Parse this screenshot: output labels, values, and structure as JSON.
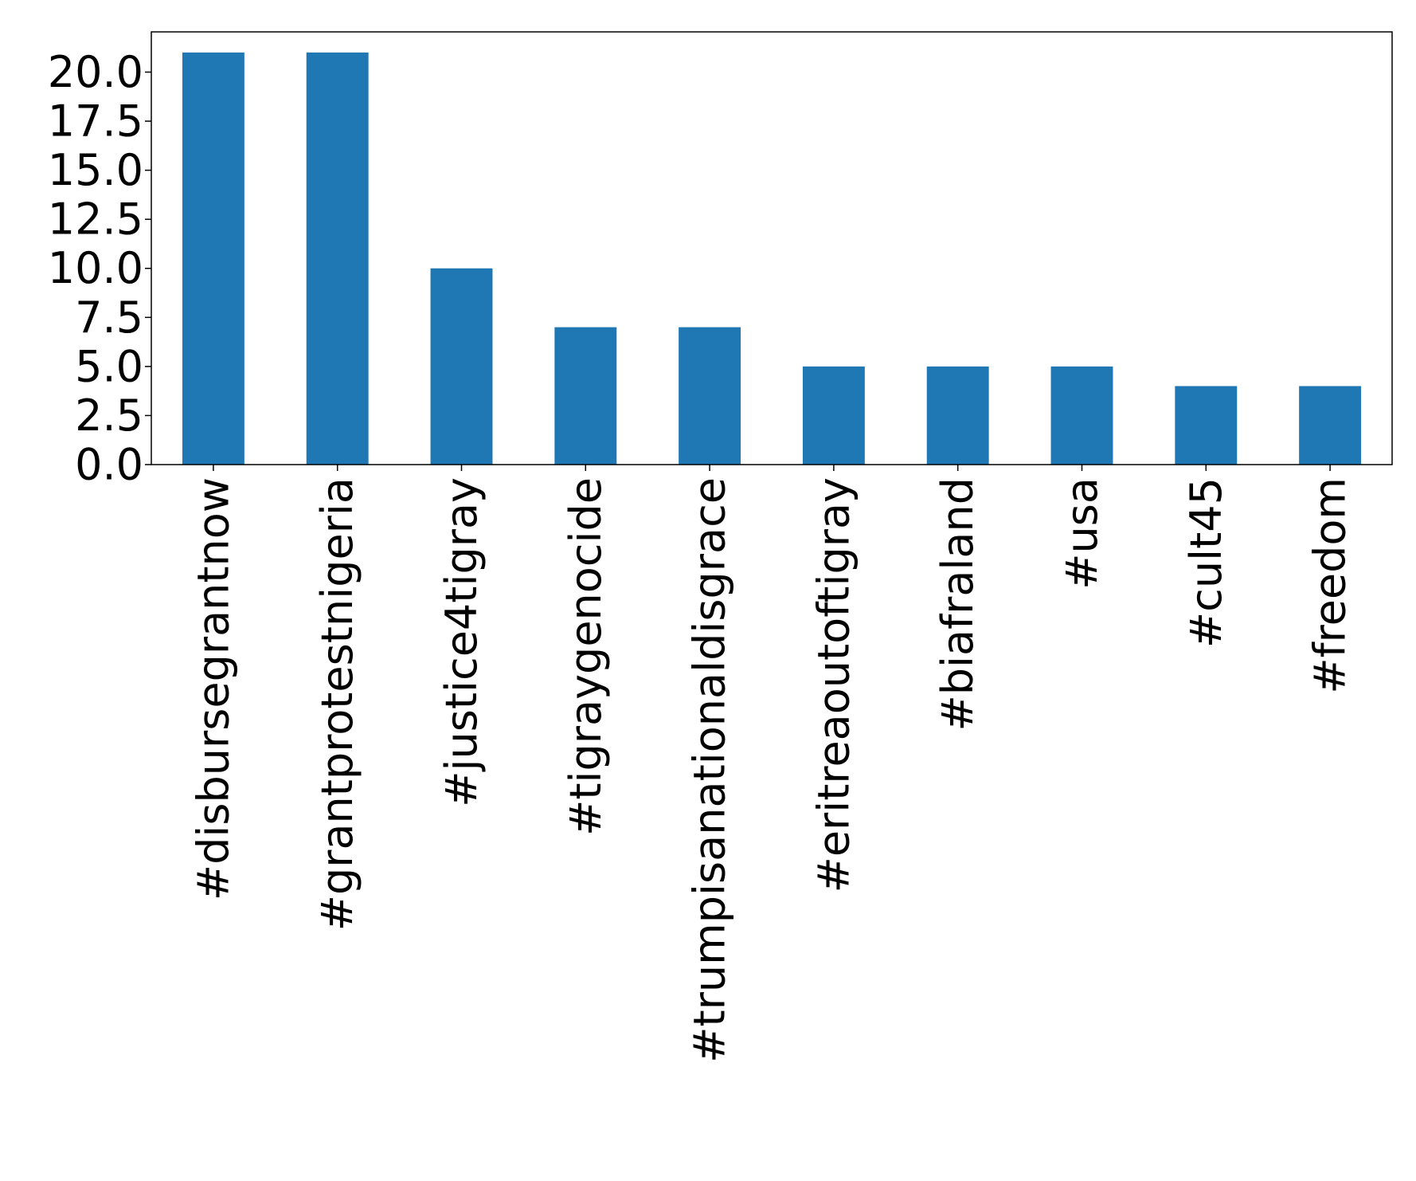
{
  "chart_data": {
    "type": "bar",
    "categories": [
      "#disbursegrantnow",
      "#grantprotestnigeria",
      "#justice4tigray",
      "#tigraygenocide",
      "#trumpisanationaldisgrace",
      "#eritreaoutoftigray",
      "#biafraland",
      "#usa",
      "#cult45",
      "#freedom"
    ],
    "values": [
      21,
      21,
      10,
      7,
      7,
      5,
      5,
      5,
      4,
      4
    ],
    "yticks": [
      "0.0",
      "2.5",
      "5.0",
      "7.5",
      "10.0",
      "12.5",
      "15.0",
      "17.5",
      "20.0"
    ],
    "ylim": [
      0,
      22.05
    ],
    "grid": false,
    "legend": false,
    "colors": {
      "bar": "#1f77b4",
      "axis": "#000000",
      "background": "#ffffff"
    }
  }
}
